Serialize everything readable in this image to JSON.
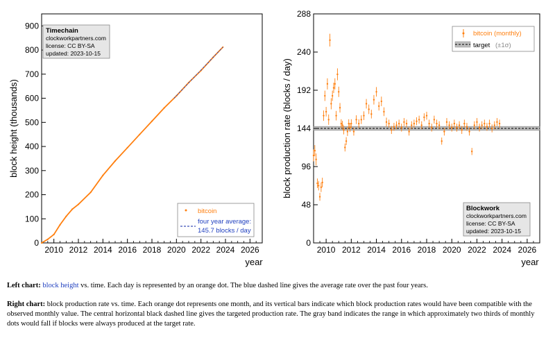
{
  "colors": {
    "orange": "#ff7f0e",
    "blue_dash": "#3a4fb8",
    "band": "#bdbdbd",
    "infobox_bg": "#e6e6e6"
  },
  "left": {
    "ylabel": "block height (thousands)",
    "xlabel": "year",
    "infobox": {
      "title": "Timechain",
      "lines": [
        "clockworkpartners.com",
        "license: CC BY-SA",
        "updated: 2023-10-15"
      ]
    },
    "legend": {
      "series": "bitcoin",
      "avg_line1": "four year average:",
      "avg_line2": "145.7 blocks / day"
    }
  },
  "right": {
    "ylabel": "block production rate (blocks / day)",
    "xlabel": "year",
    "infobox": {
      "title": "Blockwork",
      "lines": [
        "clockworkpartners.com",
        "license: CC BY-SA",
        "updated: 2023-10-15"
      ]
    },
    "legend": {
      "series": "bitcoin (monthly)",
      "target": "target",
      "target_band": "(±1σ)"
    }
  },
  "captions": {
    "left_label": "Left chart:",
    "left_link": "block height",
    "left_rest": " vs. time. Each day is represented by an orange dot. The blue dashed line gives the average rate over the past four years.",
    "right_label": "Right chart:",
    "right_rest": " block production rate vs. time. Each orange dot represents one month, and its vertical bars indicate which block production rates would have been compatible with the observed monthly value. The central horizontal black dashed line gives the targeted production rate. The gray band indicates the range in which approximately two thirds of monthly dots would fall if blocks were always produced at the target rate."
  },
  "chart_data": [
    {
      "type": "line",
      "x": [
        2009.0,
        2009.5,
        2010.0,
        2010.5,
        2011.0,
        2011.5,
        2012.0,
        2013.0,
        2014.0,
        2015.0,
        2016.0,
        2017.0,
        2018.0,
        2019.0,
        2020.0,
        2021.0,
        2022.0,
        2023.0,
        2023.79
      ],
      "series": [
        {
          "name": "bitcoin",
          "values": [
            0,
            15,
            35,
            75,
            110,
            140,
            160,
            210,
            280,
            340,
            395,
            450,
            505,
            560,
            610,
            665,
            715,
            770,
            812
          ]
        }
      ],
      "average_line": {
        "name": "four year average: 145.7 blocks / day",
        "x": [
          2019.8,
          2023.79
        ],
        "values": [
          600,
          812
        ]
      },
      "ylabel": "block height (thousands)",
      "xlabel": "year",
      "xlim": [
        2009,
        2027
      ],
      "ylim": [
        0,
        950
      ],
      "xticks": [
        2010,
        2012,
        2014,
        2016,
        2018,
        2020,
        2022,
        2024,
        2026
      ],
      "yticks": [
        0,
        100,
        200,
        300,
        400,
        500,
        600,
        700,
        800,
        900
      ],
      "legend_position": "bottom-right"
    },
    {
      "type": "scatter",
      "series": [
        {
          "name": "bitcoin (monthly)",
          "x": [
            2009.0,
            2009.1,
            2009.2,
            2009.3,
            2009.4,
            2009.5,
            2009.6,
            2009.7,
            2009.8,
            2009.9,
            2010.0,
            2010.1,
            2010.2,
            2010.3,
            2010.4,
            2010.5,
            2010.6,
            2010.7,
            2010.8,
            2010.9,
            2011.0,
            2011.1,
            2011.2,
            2011.3,
            2011.4,
            2011.5,
            2011.6,
            2011.7,
            2011.8,
            2011.9,
            2012.0,
            2012.2,
            2012.4,
            2012.6,
            2012.8,
            2013.0,
            2013.2,
            2013.4,
            2013.6,
            2013.8,
            2014.0,
            2014.2,
            2014.4,
            2014.6,
            2014.8,
            2015.0,
            2015.2,
            2015.4,
            2015.6,
            2015.8,
            2016.0,
            2016.2,
            2016.4,
            2016.6,
            2016.8,
            2017.0,
            2017.2,
            2017.4,
            2017.6,
            2017.8,
            2018.0,
            2018.2,
            2018.4,
            2018.6,
            2018.8,
            2019.0,
            2019.2,
            2019.4,
            2019.6,
            2019.8,
            2020.0,
            2020.2,
            2020.4,
            2020.6,
            2020.8,
            2021.0,
            2021.2,
            2021.4,
            2021.6,
            2021.8,
            2022.0,
            2022.2,
            2022.4,
            2022.6,
            2022.8,
            2023.0,
            2023.2,
            2023.4,
            2023.6,
            2023.8
          ],
          "y": [
            110,
            116,
            105,
            75,
            72,
            58,
            70,
            76,
            160,
            185,
            165,
            200,
            155,
            255,
            175,
            185,
            195,
            200,
            160,
            212,
            190,
            170,
            150,
            148,
            142,
            120,
            128,
            140,
            150,
            145,
            150,
            140,
            155,
            150,
            155,
            160,
            175,
            168,
            162,
            180,
            190,
            172,
            178,
            165,
            152,
            150,
            142,
            146,
            148,
            150,
            145,
            152,
            150,
            140,
            148,
            150,
            153,
            155,
            148,
            158,
            160,
            150,
            145,
            155,
            150,
            148,
            128,
            140,
            152,
            148,
            145,
            150,
            145,
            148,
            142,
            150,
            146,
            140,
            115,
            148,
            152,
            145,
            148,
            150,
            146,
            150,
            144,
            148,
            152,
            150
          ],
          "err": [
            15,
            14,
            15,
            12,
            12,
            10,
            12,
            12,
            13,
            13,
            12,
            14,
            13,
            16,
            14,
            13,
            13,
            14,
            12,
            15,
            13,
            12,
            11,
            11,
            11,
            10,
            10,
            11,
            11,
            11,
            11,
            10,
            11,
            11,
            11,
            11,
            12,
            12,
            11,
            12,
            12,
            11,
            12,
            11,
            11,
            10,
            10,
            10,
            10,
            10,
            10,
            10,
            10,
            10,
            10,
            10,
            10,
            10,
            10,
            10,
            10,
            10,
            10,
            10,
            10,
            10,
            9,
            10,
            10,
            10,
            10,
            10,
            10,
            10,
            10,
            10,
            10,
            10,
            9,
            10,
            10,
            10,
            10,
            10,
            10,
            10,
            10,
            10,
            10,
            10
          ]
        }
      ],
      "target": {
        "name": "target",
        "value": 144,
        "band_low": 141.5,
        "band_high": 146.5
      },
      "ylabel": "block production rate (blocks / day)",
      "xlabel": "year",
      "xlim": [
        2009,
        2027
      ],
      "ylim": [
        0,
        288
      ],
      "xticks": [
        2010,
        2012,
        2014,
        2016,
        2018,
        2020,
        2022,
        2024,
        2026
      ],
      "yticks": [
        0,
        48,
        96,
        144,
        192,
        240,
        288
      ],
      "legend_position": "top-right"
    }
  ]
}
